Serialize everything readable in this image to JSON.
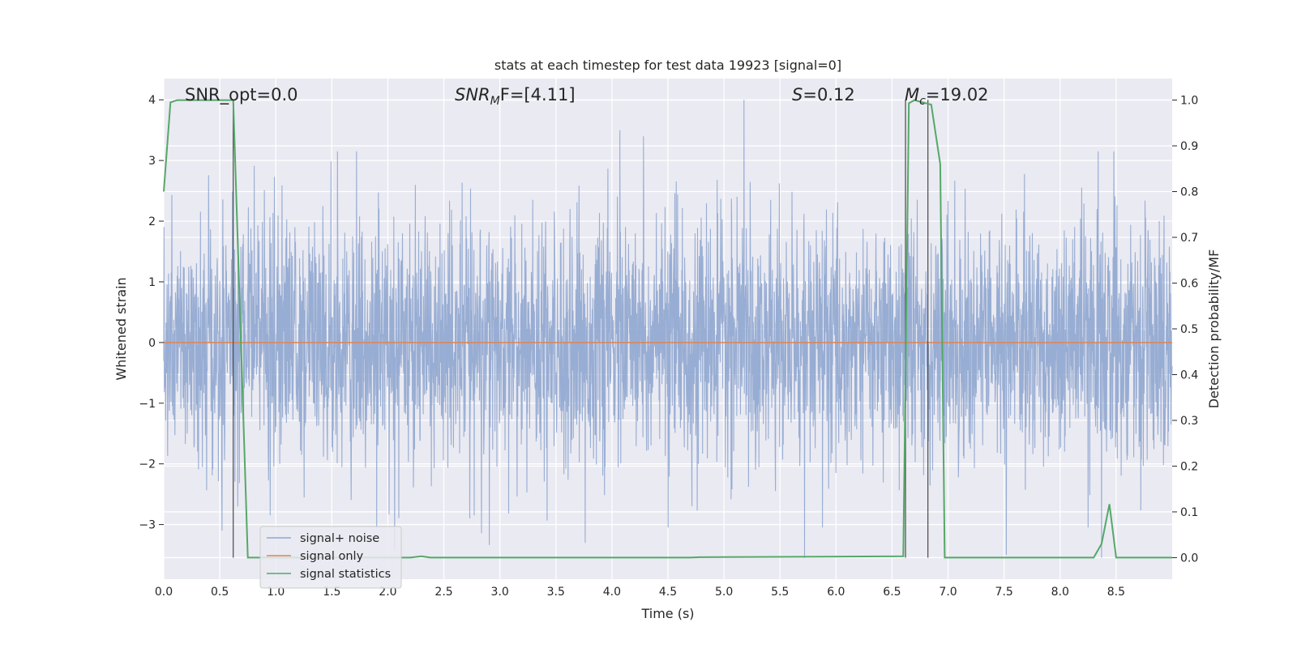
{
  "chart_data": {
    "type": "line",
    "title": "stats at each timestep for test data 19923 [signal=0]",
    "xlabel": "Time (s)",
    "ylabel": "Whitened strain",
    "y2label": "Detection probability/MF",
    "xlim": [
      0,
      9.0
    ],
    "ylim": [
      -3.9,
      4.35
    ],
    "y2lim": [
      -0.047,
      1.047
    ],
    "xticks": [
      "0.0",
      "0.5",
      "1.0",
      "1.5",
      "2.0",
      "2.5",
      "3.0",
      "3.5",
      "4.0",
      "4.5",
      "5.0",
      "5.5",
      "6.0",
      "6.5",
      "7.0",
      "7.5",
      "8.0",
      "8.5"
    ],
    "yticks": [
      "4",
      "3",
      "2",
      "1",
      "0",
      "−1",
      "−2",
      "−3"
    ],
    "y2ticks": [
      "1.0",
      "0.9",
      "0.8",
      "0.7",
      "0.6",
      "0.5",
      "0.4",
      "0.3",
      "0.2",
      "0.1",
      "0.0"
    ],
    "grid": true,
    "legend_position": "lower-left",
    "annotations": {
      "snr_opt": "SNR_opt=0.0",
      "snr_mf_main": "SNR",
      "snr_mf_sub": "M",
      "snr_mf_rest": "F=[4.11]",
      "s_main": "S",
      "s_rest": "=0.12",
      "mc_main": "M",
      "mc_sub": "c",
      "mc_rest": "=19.02"
    },
    "series": [
      {
        "name": "signal+ noise",
        "color": "#8fa6cf",
        "description_values": {
          "min": -3.55,
          "max": 4.0,
          "std": 1.0
        },
        "spikes": [
          {
            "x": 0.52,
            "y": -3.1
          },
          {
            "x": 0.66,
            "y": -2.7
          },
          {
            "x": 0.95,
            "y": -2.85
          },
          {
            "x": 1.55,
            "y": 3.15
          },
          {
            "x": 1.72,
            "y": 3.15
          },
          {
            "x": 2.73,
            "y": -2.9
          },
          {
            "x": 2.77,
            "y": -2.85
          },
          {
            "x": 3.76,
            "y": -3.3
          },
          {
            "x": 4.07,
            "y": 3.5
          },
          {
            "x": 4.28,
            "y": 3.4
          },
          {
            "x": 4.5,
            "y": -3.05
          },
          {
            "x": 5.18,
            "y": 4.0
          },
          {
            "x": 5.72,
            "y": -3.55
          },
          {
            "x": 5.88,
            "y": -3.05
          },
          {
            "x": 7.52,
            "y": -3.5
          },
          {
            "x": 8.25,
            "y": -3.05
          },
          {
            "x": 8.34,
            "y": 3.15
          },
          {
            "x": 8.48,
            "y": 3.15
          }
        ]
      },
      {
        "name": "signal only",
        "color": "#dd8452",
        "x": [
          0,
          9.0
        ],
        "y": [
          0,
          0
        ]
      },
      {
        "name": "signal statistics",
        "color": "#55a868",
        "axis": "right",
        "x": [
          0.0,
          0.06,
          0.12,
          0.62,
          0.75,
          0.8,
          2.2,
          2.3,
          2.38,
          4.7,
          4.78,
          6.6,
          6.65,
          6.7,
          6.85,
          6.93,
          6.97,
          8.3,
          8.37,
          8.44,
          8.5,
          9.0
        ],
        "y": [
          0.8,
          0.995,
          1.0,
          1.0,
          0.0,
          0.0,
          0.0,
          0.003,
          0.0,
          0.0,
          0.001,
          0.003,
          0.993,
          1.0,
          0.99,
          0.86,
          0.0,
          0.0,
          0.03,
          0.117,
          0.0,
          0.0
        ]
      }
    ],
    "vlines": [
      0.62,
      6.62,
      6.82
    ]
  }
}
